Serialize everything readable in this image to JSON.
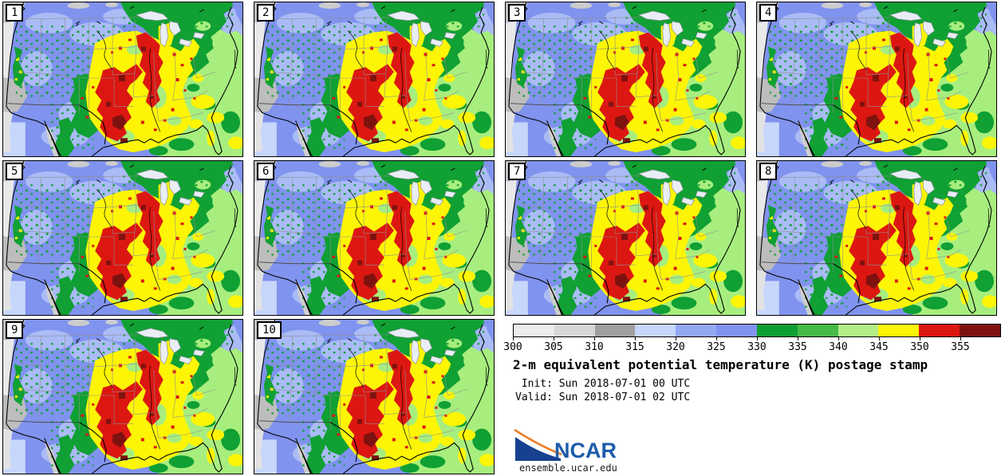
{
  "caption": {
    "title": "2-m equivalent potential temperature (K) postage stamp",
    "init_line": " Init: Sun 2018-07-01 00 UTC",
    "valid_line": "Valid: Sun 2018-07-01 02 UTC"
  },
  "panels": [
    {
      "id": "1"
    },
    {
      "id": "2"
    },
    {
      "id": "3"
    },
    {
      "id": "4"
    },
    {
      "id": "5"
    },
    {
      "id": "6"
    },
    {
      "id": "7"
    },
    {
      "id": "8"
    },
    {
      "id": "9"
    },
    {
      "id": "10"
    }
  ],
  "colorbar": {
    "ticks": [
      "300",
      "305",
      "310",
      "315",
      "320",
      "325",
      "330",
      "335",
      "340",
      "345",
      "350",
      "355"
    ],
    "colors": [
      "#ededed",
      "#d7d7d7",
      "#a0a0a0",
      "#c6d7fb",
      "#94a8f4",
      "#8193ef",
      "#0f9e33",
      "#47ba47",
      "#b2ef86",
      "#fdf505",
      "#dc1712",
      "#7e120f"
    ]
  },
  "logo": {
    "text": "NCAR",
    "url": "ensemble.ucar.edu",
    "brand_blue": "#17418f",
    "brand_orange": "#ee7d23",
    "wordmark_blue": "#1d5cab"
  },
  "chart_data": {
    "type": "heatmap",
    "title": "2-m equivalent potential temperature (K) postage stamp",
    "variable": "2-m equivalent potential temperature",
    "units": "K",
    "panel_labels": [
      "1",
      "2",
      "3",
      "4",
      "5",
      "6",
      "7",
      "8",
      "9",
      "10"
    ],
    "panel_layout": "10 ensemble-member CONUS maps in a 4x3 grid; legend block occupies bottom-right two cells",
    "field_pattern": "high theta-e (350-360 K, red/dark red) over central Plains and Mississippi valley; yellow 345-350 halo; green 330-340 over Northeast and Rockies speckles; light green 340-345 over Southeast and Gulf; blue 315-330 over West and northern Plains; gray 300-315 along Pacific coast",
    "colorbar_ticks": [
      300,
      305,
      310,
      315,
      320,
      325,
      330,
      335,
      340,
      345,
      350,
      355
    ],
    "colorbar_colors": [
      "#ededed",
      "#d7d7d7",
      "#a0a0a0",
      "#c6d7fb",
      "#94a8f4",
      "#8193ef",
      "#0f9e33",
      "#47ba47",
      "#b2ef86",
      "#fdf505",
      "#dc1712",
      "#7e120f"
    ],
    "value_range": [
      300,
      360
    ],
    "init": "Sun 2018-07-01 00 UTC",
    "valid": "Sun 2018-07-01 02 UTC",
    "legend_position": "bottom-right"
  }
}
